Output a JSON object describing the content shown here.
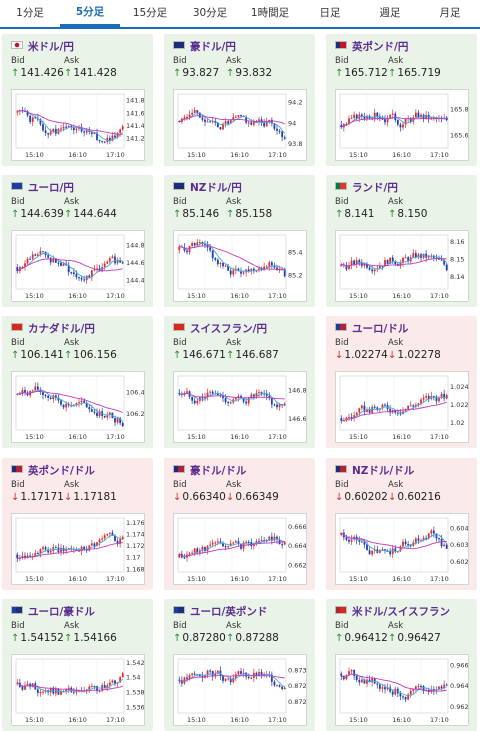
{
  "tabs": [
    {
      "label": "1分足",
      "active": false
    },
    {
      "label": "5分足",
      "active": true
    },
    {
      "label": "15分足",
      "active": false
    },
    {
      "label": "30分足",
      "active": false
    },
    {
      "label": "1時間足",
      "active": false
    },
    {
      "label": "日足",
      "active": false
    },
    {
      "label": "週足",
      "active": false
    },
    {
      "label": "月足",
      "active": false
    }
  ],
  "labels": {
    "bid": "Bid",
    "ask": "Ask"
  },
  "colors": {
    "up_bg": "#e9f3e7",
    "down_bg": "#fbeaea",
    "bull": "#e03030",
    "bear": "#1d3fb0",
    "ma_short": "#46a9d8",
    "ma_long": "#c23cc4",
    "name": "#5b2c91"
  },
  "pairs": [
    {
      "name": "米ドル/円",
      "dir": "up",
      "flag": [
        "#ffffff",
        "#ffffff"
      ],
      "bid": "141.426",
      "ask": "141.428",
      "chart_data": {
        "type": "candlestick",
        "x_ticks": [
          "15:10",
          "16:10",
          "17:10"
        ],
        "y_ticks": [
          "141.8",
          "141.6",
          "141.4",
          "141.2"
        ],
        "ylim": [
          141.05,
          141.9
        ],
        "start": 141.62,
        "seed": 1,
        "trend": [
          0,
          -0.15,
          -0.35,
          -0.25,
          -0.3,
          -0.45,
          -0.4,
          -0.2
        ]
      }
    },
    {
      "name": "豪ドル/円",
      "dir": "up",
      "flag": [
        "#1c2d7a",
        "#1c2d7a"
      ],
      "bid": "93.827",
      "ask": "93.832",
      "chart_data": {
        "type": "candlestick",
        "x_ticks": [
          "15:10",
          "16:10",
          "17:10"
        ],
        "y_ticks": [
          "94.2",
          "94",
          "93.8"
        ],
        "ylim": [
          93.76,
          94.28
        ],
        "start": 94.02,
        "seed": 2,
        "trend": [
          0,
          0.12,
          -0.05,
          -0.02,
          0.02,
          -0.03,
          0.0,
          -0.18
        ]
      }
    },
    {
      "name": "英ポンド/円",
      "dir": "up",
      "flag": [
        "#1c2d7a",
        "#c8102e"
      ],
      "bid": "165.712",
      "ask": "165.719",
      "chart_data": {
        "type": "candlestick",
        "x_ticks": [
          "15:10",
          "16:10",
          "17:10"
        ],
        "y_ticks": [
          "165.8",
          "165.6"
        ],
        "ylim": [
          165.5,
          165.92
        ],
        "start": 165.68,
        "seed": 3,
        "trend": [
          0,
          0.06,
          0.1,
          0.05,
          0.02,
          0.08,
          0.04,
          0.03
        ]
      }
    },
    {
      "name": "ユーロ/円",
      "dir": "up",
      "flag": [
        "#1c3f9e",
        "#1c3f9e"
      ],
      "bid": "144.639",
      "ask": "144.644",
      "chart_data": {
        "type": "candlestick",
        "x_ticks": [
          "15:10",
          "16:10",
          "17:10"
        ],
        "y_ticks": [
          "144.8",
          "144.6",
          "144.4"
        ],
        "ylim": [
          144.3,
          144.92
        ],
        "start": 144.55,
        "seed": 4,
        "trend": [
          0,
          0.15,
          0.12,
          0.0,
          -0.1,
          -0.05,
          0.05,
          0.08
        ]
      }
    },
    {
      "name": "NZドル/円",
      "dir": "up",
      "flag": [
        "#1c2d7a",
        "#1c2d7a"
      ],
      "bid": "85.146",
      "ask": "85.158",
      "chart_data": {
        "type": "candlestick",
        "x_ticks": [
          "15:10",
          "16:10",
          "17:10"
        ],
        "y_ticks": [
          "85.4",
          "85.2"
        ],
        "ylim": [
          85.08,
          85.55
        ],
        "start": 85.42,
        "seed": 5,
        "trend": [
          0,
          0.05,
          -0.05,
          -0.2,
          -0.18,
          -0.14,
          -0.1,
          -0.25
        ]
      }
    },
    {
      "name": "ランド/円",
      "dir": "up",
      "flag": [
        "#007a4d",
        "#de3831"
      ],
      "bid": "8.141",
      "ask": "8.150",
      "chart_data": {
        "type": "candlestick",
        "x_ticks": [
          "15:10",
          "16:10",
          "17:10"
        ],
        "y_ticks": [
          "8.16",
          "8.15",
          "8.14"
        ],
        "ylim": [
          8.133,
          8.164
        ],
        "start": 8.146,
        "seed": 6,
        "trend": [
          0,
          0.002,
          0.001,
          0.004,
          0.003,
          0.006,
          0.004,
          -0.002
        ]
      }
    },
    {
      "name": "カナダドル/円",
      "dir": "up",
      "flag": [
        "#d52b1e",
        "#d52b1e"
      ],
      "bid": "106.141",
      "ask": "106.156",
      "chart_data": {
        "type": "candlestick",
        "x_ticks": [
          "15:10",
          "16:10",
          "17:10"
        ],
        "y_ticks": [
          "106.4",
          "106.2"
        ],
        "ylim": [
          106.05,
          106.55
        ],
        "start": 106.38,
        "seed": 7,
        "trend": [
          0,
          0.05,
          -0.02,
          -0.08,
          -0.1,
          -0.15,
          -0.2,
          -0.25
        ]
      }
    },
    {
      "name": "スイスフラン/円",
      "dir": "up",
      "flag": [
        "#d52b1e",
        "#d52b1e"
      ],
      "bid": "146.671",
      "ask": "146.687",
      "chart_data": {
        "type": "candlestick",
        "x_ticks": [
          "15:10",
          "16:10",
          "17:10"
        ],
        "y_ticks": [
          "146.8",
          "146.6"
        ],
        "ylim": [
          146.52,
          146.9
        ],
        "start": 146.78,
        "seed": 8,
        "trend": [
          0,
          -0.04,
          0.0,
          -0.05,
          -0.06,
          -0.02,
          -0.08,
          -0.12
        ]
      }
    },
    {
      "name": "ユーロ/ドル",
      "dir": "down",
      "flag": [
        "#1c3f9e",
        "#b22234"
      ],
      "bid": "1.02274",
      "ask": "1.02278",
      "chart_data": {
        "type": "candlestick",
        "x_ticks": [
          "15:10",
          "16:10",
          "17:10"
        ],
        "y_ticks": [
          "1.024",
          "1.022",
          "1.02"
        ],
        "ylim": [
          1.0192,
          1.0252
        ],
        "start": 1.0205,
        "seed": 9,
        "trend": [
          0,
          0.0006,
          0.001,
          0.0011,
          0.0012,
          0.0018,
          0.0024,
          0.0022
        ]
      }
    },
    {
      "name": "英ポンド/ドル",
      "dir": "down",
      "flag": [
        "#1c2d7a",
        "#b22234"
      ],
      "bid": "1.17171",
      "ask": "1.17181",
      "chart_data": {
        "type": "candlestick",
        "x_ticks": [
          "15:10",
          "16:10",
          "17:10"
        ],
        "y_ticks": [
          "1.176",
          "1.174",
          "1.172",
          "1.17",
          "1.168"
        ],
        "ylim": [
          1.1675,
          1.1768
        ],
        "start": 1.1705,
        "seed": 10,
        "trend": [
          0,
          0.0008,
          0.0004,
          0.0006,
          0.0012,
          0.0022,
          0.0032,
          0.0025
        ]
      }
    },
    {
      "name": "豪ドル/ドル",
      "dir": "down",
      "flag": [
        "#1c2d7a",
        "#b22234"
      ],
      "bid": "0.66340",
      "ask": "0.66349",
      "chart_data": {
        "type": "candlestick",
        "x_ticks": [
          "15:10",
          "16:10",
          "17:10"
        ],
        "y_ticks": [
          "0.666",
          "0.664",
          "0.662"
        ],
        "ylim": [
          0.6613,
          0.6669
        ],
        "start": 0.6628,
        "seed": 11,
        "trend": [
          0,
          0.0008,
          0.0012,
          0.0014,
          0.0012,
          0.0016,
          0.0022,
          0.0014
        ]
      }
    },
    {
      "name": "NZドル/ドル",
      "dir": "down",
      "flag": [
        "#1c2d7a",
        "#b22234"
      ],
      "bid": "0.60202",
      "ask": "0.60216",
      "chart_data": {
        "type": "candlestick",
        "x_ticks": [
          "15:10",
          "16:10",
          "17:10"
        ],
        "y_ticks": [
          "0.604",
          "0.603",
          "0.602"
        ],
        "ylim": [
          0.6014,
          0.6046
        ],
        "start": 0.6036,
        "seed": 12,
        "trend": [
          0,
          -0.0004,
          -0.0012,
          -0.001,
          -0.0005,
          -0.0002,
          0.0002,
          -0.0012
        ]
      }
    },
    {
      "name": "ユーロ/豪ドル",
      "dir": "up",
      "flag": [
        "#1c3f9e",
        "#1c2d7a"
      ],
      "bid": "1.54152",
      "ask": "1.54166",
      "chart_data": {
        "type": "candlestick",
        "x_ticks": [
          "15:10",
          "16:10",
          "17:10"
        ],
        "y_ticks": [
          "1.542",
          "1.54",
          "1.538",
          "1.536"
        ],
        "ylim": [
          1.5352,
          1.5425
        ],
        "start": 1.5392,
        "seed": 13,
        "trend": [
          0,
          -0.0006,
          -0.001,
          -0.0012,
          -0.0014,
          -0.001,
          -0.0004,
          0.0018
        ]
      }
    },
    {
      "name": "ユーロ/英ポンド",
      "dir": "up",
      "flag": [
        "#1c3f9e",
        "#1c2d7a"
      ],
      "bid": "0.87280",
      "ask": "0.87288",
      "chart_data": {
        "type": "candlestick",
        "x_ticks": [
          "15:10",
          "16:10",
          "17:10"
        ],
        "y_ticks": [
          "0.873",
          "0.8725",
          "0.872"
        ],
        "ylim": [
          0.87165,
          0.87335
        ],
        "start": 0.8727,
        "seed": 14,
        "trend": [
          0,
          0.0001,
          0.0002,
          5e-05,
          0.0001,
          0.00015,
          0.0,
          -0.0002
        ]
      }
    },
    {
      "name": "米ドル/スイスフラン",
      "dir": "up",
      "flag": [
        "#b22234",
        "#d52b1e"
      ],
      "bid": "0.96412",
      "ask": "0.96427",
      "chart_data": {
        "type": "candlestick",
        "x_ticks": [
          "15:10",
          "16:10",
          "17:10"
        ],
        "y_ticks": [
          "0.966",
          "0.964",
          "0.962"
        ],
        "ylim": [
          0.9614,
          0.9666
        ],
        "start": 0.9652,
        "seed": 15,
        "trend": [
          0,
          -0.0004,
          -0.0008,
          -0.0014,
          -0.002,
          -0.0018,
          -0.0016,
          -0.001
        ]
      }
    }
  ]
}
